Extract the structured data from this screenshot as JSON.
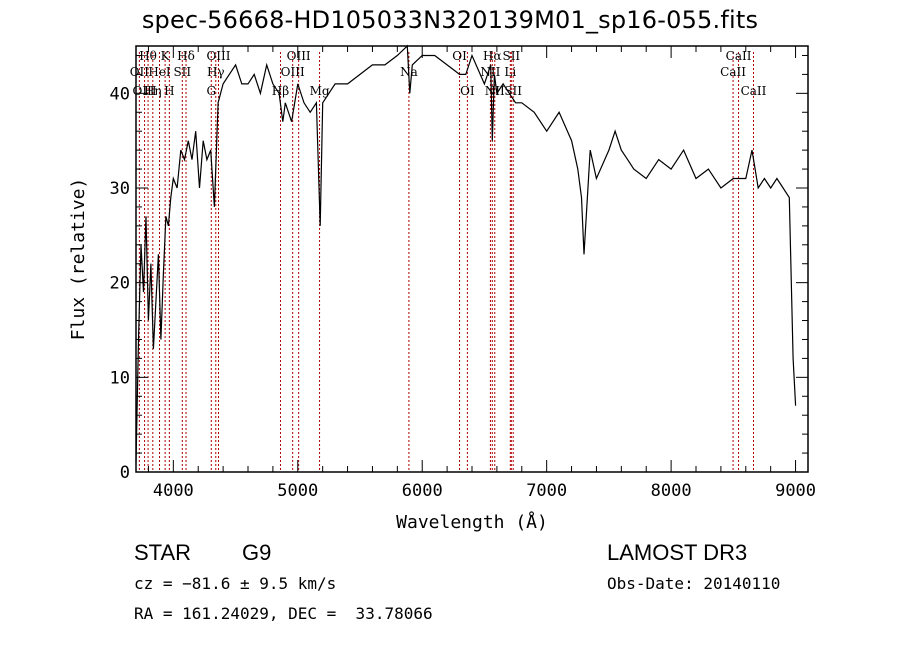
{
  "header": {
    "title": "spec-56668-HD105033N320139M01_sp16-055.fits"
  },
  "chart_data": {
    "type": "line",
    "title": "spec-56668-HD105033N320139M01_sp16-055.fits",
    "xlabel": "Wavelength (Å)",
    "ylabel": "Flux (relative)",
    "xlim": [
      3700,
      9100
    ],
    "ylim": [
      0,
      45
    ],
    "xticks": [
      4000,
      5000,
      6000,
      7000,
      8000,
      9000
    ],
    "yticks": [
      0,
      10,
      20,
      30,
      40
    ],
    "grid": false,
    "series": [
      {
        "x": [
          3700,
          3720,
          3740,
          3760,
          3780,
          3800,
          3820,
          3840,
          3860,
          3880,
          3900,
          3920,
          3940,
          3960,
          3980,
          4000,
          4030,
          4060,
          4090,
          4120,
          4150,
          4180,
          4210,
          4240,
          4270,
          4300,
          4330,
          4360,
          4400,
          4450,
          4500,
          4550,
          4600,
          4650,
          4700,
          4750,
          4800,
          4850,
          4880,
          4900,
          4950,
          5000,
          5050,
          5100,
          5150,
          5180,
          5200,
          5250,
          5300,
          5400,
          5500,
          5600,
          5700,
          5800,
          5880,
          5900,
          5920,
          6000,
          6100,
          6200,
          6300,
          6350,
          6400,
          6500,
          6550,
          6563,
          6580,
          6600,
          6650,
          6700,
          6750,
          6800,
          6900,
          7000,
          7100,
          7200,
          7250,
          7280,
          7300,
          7350,
          7400,
          7500,
          7550,
          7600,
          7650,
          7700,
          7800,
          7900,
          8000,
          8100,
          8200,
          8300,
          8400,
          8500,
          8600,
          8650,
          8700,
          8750,
          8800,
          8850,
          8900,
          8950,
          8980,
          9000
        ],
        "y": [
          1,
          14,
          24,
          19,
          27,
          16,
          22,
          13,
          18,
          23,
          14,
          21,
          27,
          26,
          29,
          31,
          30,
          34,
          33,
          35,
          33,
          36,
          30,
          35,
          33,
          34,
          28,
          39,
          41,
          42,
          43,
          41,
          41,
          42,
          40,
          43,
          41,
          40,
          37,
          39,
          37,
          41,
          39,
          38,
          39,
          26,
          39,
          40,
          41,
          41,
          42,
          43,
          43,
          44,
          45,
          40,
          43,
          44,
          44,
          43,
          42,
          42,
          44,
          41,
          43,
          35,
          42,
          40,
          41,
          40,
          39,
          39,
          38,
          36,
          38,
          35,
          32,
          29,
          23,
          34,
          31,
          34,
          36,
          34,
          33,
          32,
          31,
          33,
          32,
          34,
          31,
          32,
          30,
          31,
          31,
          34,
          30,
          31,
          30,
          31,
          30,
          29,
          12,
          7
        ]
      }
    ],
    "line_markers": [
      {
        "label": "Hθ",
        "x": 3797,
        "row": 0
      },
      {
        "label": "OII",
        "x": 3727,
        "row": 1
      },
      {
        "label": "OIII",
        "x": 3769,
        "row": 2
      },
      {
        "label": "K",
        "x": 3934,
        "row": 0
      },
      {
        "label": "HeI",
        "x": 3889,
        "row": 1
      },
      {
        "label": "H",
        "x": 3968,
        "row": 2
      },
      {
        "label": "Hδ",
        "x": 4102,
        "row": 0
      },
      {
        "label": "SII",
        "x": 4072,
        "row": 1
      },
      {
        "label": "Hη",
        "x": 3835,
        "row": 2
      },
      {
        "label": "OIII",
        "x": 4363,
        "row": 0
      },
      {
        "label": "Hγ",
        "x": 4341,
        "row": 1
      },
      {
        "label": "G",
        "x": 4305,
        "row": 2
      },
      {
        "label": "OIII",
        "x": 5007,
        "row": 0
      },
      {
        "label": "OIII",
        "x": 4959,
        "row": 1
      },
      {
        "label": "Hβ",
        "x": 4861,
        "row": 2
      },
      {
        "label": "Mg",
        "x": 5175,
        "row": 2
      },
      {
        "label": "Na",
        "x": 5893,
        "row": 1
      },
      {
        "label": "OI",
        "x": 6300,
        "row": 0
      },
      {
        "label": "OI",
        "x": 6363,
        "row": 2
      },
      {
        "label": "Hα",
        "x": 6563,
        "row": 0
      },
      {
        "label": "SII",
        "x": 6716,
        "row": 0
      },
      {
        "label": "NII",
        "x": 6548,
        "row": 1
      },
      {
        "label": "Li",
        "x": 6708,
        "row": 1
      },
      {
        "label": "NII",
        "x": 6583,
        "row": 2
      },
      {
        "label": "SII",
        "x": 6731,
        "row": 2
      },
      {
        "label": "CaII",
        "x": 8542,
        "row": 0
      },
      {
        "label": "CaII",
        "x": 8498,
        "row": 1
      },
      {
        "label": "CaII",
        "x": 8662,
        "row": 2
      }
    ]
  },
  "info": {
    "class_label": "STAR",
    "subclass": "G9",
    "survey": "LAMOST DR3",
    "cz_text": "cz = −81.6 ± 9.5 km/s",
    "obs_date": "Obs-Date: 20140110",
    "coords": "RA = 161.24029, DEC =  33.78066"
  }
}
